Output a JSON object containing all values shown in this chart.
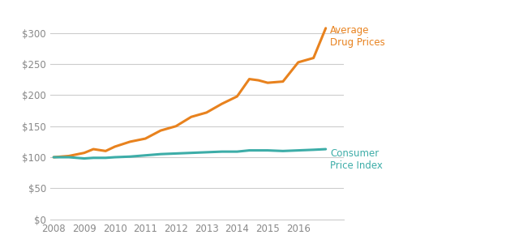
{
  "years": [
    2008,
    2008.5,
    2009,
    2009.3,
    2009.7,
    2010,
    2010.5,
    2011,
    2011.5,
    2012,
    2012.5,
    2013,
    2013.5,
    2014,
    2014.4,
    2014.7,
    2015,
    2015.5,
    2016,
    2016.5,
    2016.9
  ],
  "drug_prices": [
    100,
    102,
    107,
    113,
    110,
    117,
    125,
    130,
    143,
    150,
    165,
    172,
    186,
    198,
    226,
    224,
    220,
    222,
    253,
    260,
    308
  ],
  "cpi": [
    100,
    100,
    98,
    99,
    99,
    100,
    101,
    103,
    105,
    106,
    107,
    108,
    109,
    109,
    111,
    111,
    111,
    110,
    111,
    112,
    113
  ],
  "drug_color": "#E8821E",
  "cpi_color": "#3DADA8",
  "label_drug": "Average\nDrug Prices",
  "label_cpi": "Consumer\nPrice Index",
  "label_drug_color": "#E8821E",
  "label_cpi_color": "#3DADA8",
  "background_color": "#FFFFFF",
  "grid_color": "#CCCCCC",
  "tick_label_color": "#888888",
  "ylim": [
    0,
    325
  ],
  "yticks": [
    0,
    50,
    100,
    150,
    200,
    250,
    300
  ],
  "xlim": [
    2007.9,
    2017.5
  ],
  "xticks": [
    2008,
    2009,
    2010,
    2011,
    2012,
    2013,
    2014,
    2015,
    2016
  ],
  "line_width": 2.2,
  "font_size": 8.5
}
